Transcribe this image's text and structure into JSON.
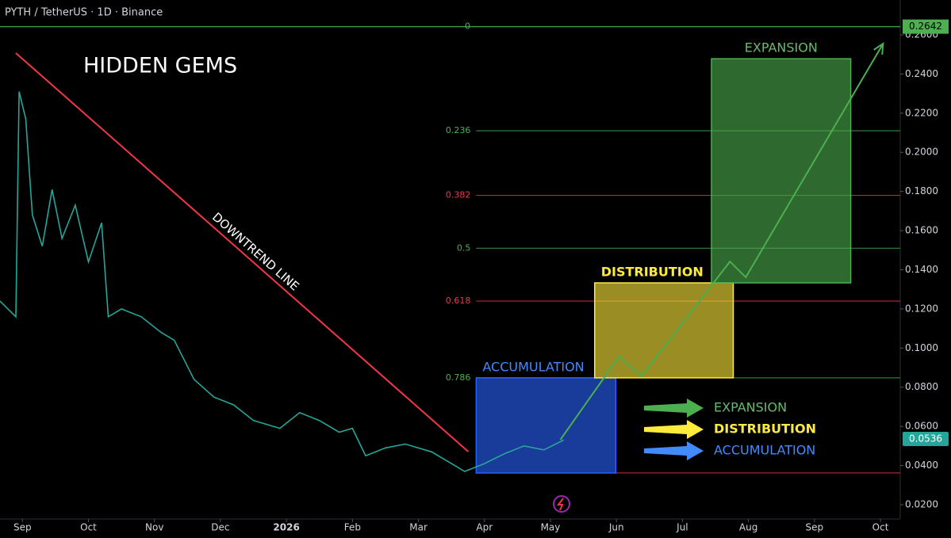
{
  "chart_data": {
    "type": "line",
    "title": "PYTH / TetherUS · 1D · Binance",
    "annotation": "HIDDEN GEMS",
    "xlim": [
      -0.34,
      13.3
    ],
    "ylim": [
      0.0127,
      0.2778
    ],
    "xticks": [
      {
        "value": 0,
        "label": "Sep"
      },
      {
        "value": 1,
        "label": "Oct"
      },
      {
        "value": 2,
        "label": "Nov"
      },
      {
        "value": 3,
        "label": "Dec"
      },
      {
        "value": 4,
        "label": "2026"
      },
      {
        "value": 5,
        "label": "Feb"
      },
      {
        "value": 6,
        "label": "Mar"
      },
      {
        "value": 7,
        "label": "Apr"
      },
      {
        "value": 8,
        "label": "May"
      },
      {
        "value": 9,
        "label": "Jun"
      },
      {
        "value": 10,
        "label": "Jul"
      },
      {
        "value": 11,
        "label": "Aug"
      },
      {
        "value": 12,
        "label": "Sep"
      },
      {
        "value": 13,
        "label": "Oct"
      }
    ],
    "yticks": [
      {
        "value": 0.02,
        "label": "0.0200"
      },
      {
        "value": 0.04,
        "label": "0.0400"
      },
      {
        "value": 0.06,
        "label": "0.0600"
      },
      {
        "value": 0.08,
        "label": "0.0800"
      },
      {
        "value": 0.1,
        "label": "0.1000"
      },
      {
        "value": 0.12,
        "label": "0.1200"
      },
      {
        "value": 0.14,
        "label": "0.1400"
      },
      {
        "value": 0.16,
        "label": "0.1600"
      },
      {
        "value": 0.18,
        "label": "0.1800"
      },
      {
        "value": 0.2,
        "label": "0.2000"
      },
      {
        "value": 0.22,
        "label": "0.2200"
      },
      {
        "value": 0.24,
        "label": "0.2400"
      },
      {
        "value": 0.26,
        "label": "0.2600"
      }
    ],
    "series": [
      {
        "name": "PYTH",
        "color": "#26a69a",
        "x": [
          -0.34,
          -0.1,
          -0.05,
          0.05,
          0.15,
          0.3,
          0.45,
          0.6,
          0.8,
          1.0,
          1.2,
          1.3,
          1.5,
          1.8,
          2.1,
          2.3,
          2.6,
          2.9,
          3.2,
          3.5,
          3.9,
          4.2,
          4.5,
          4.8,
          5.0,
          5.2,
          5.5,
          5.8,
          6.2,
          6.5,
          6.7,
          7.0,
          7.3,
          7.6,
          7.9,
          8.2
        ],
        "values": [
          0.124,
          0.116,
          0.231,
          0.217,
          0.168,
          0.152,
          0.181,
          0.156,
          0.173,
          0.144,
          0.164,
          0.116,
          0.12,
          0.116,
          0.108,
          0.104,
          0.084,
          0.075,
          0.071,
          0.063,
          0.059,
          0.067,
          0.063,
          0.057,
          0.059,
          0.045,
          0.049,
          0.051,
          0.047,
          0.041,
          0.037,
          0.041,
          0.046,
          0.05,
          0.048,
          0.053
        ]
      }
    ],
    "last_price": 0.0536,
    "projection": {
      "color": "#4caf50",
      "x": [
        8.15,
        9.04,
        9.38,
        10.72,
        10.96,
        13.04
      ],
      "values": [
        0.0532,
        0.0957,
        0.0856,
        0.1442,
        0.1362,
        0.2555
      ]
    },
    "trendline": {
      "label": "DOWNTREND LINE",
      "color": "#f23645",
      "x": [
        -0.1,
        6.755
      ],
      "values": [
        0.2507,
        0.0471
      ]
    },
    "zones": [
      {
        "label": "ACCUMULATION",
        "color": "#2962ff",
        "x": [
          6.875,
          8.99
        ],
        "y": [
          0.0362,
          0.0848
        ]
      },
      {
        "label": "DISTRIBUTION",
        "color": "#ffeb3b",
        "x": [
          8.67,
          10.77
        ],
        "y": [
          0.0848,
          0.1333
        ]
      },
      {
        "label": "EXPANSION",
        "color": "#4caf50",
        "x": [
          10.44,
          12.55
        ],
        "y": [
          0.1333,
          0.2478
        ]
      }
    ],
    "fib_levels": [
      {
        "label": "0",
        "price": 0.2642,
        "color": "#4caf50"
      },
      {
        "label": "0.236",
        "price": 0.211,
        "color": "#4caf50"
      },
      {
        "label": "0.382",
        "price": 0.178,
        "color": "#f23645"
      },
      {
        "label": "0.5",
        "price": 0.151,
        "color": "#4caf50"
      },
      {
        "label": "0.618",
        "price": 0.124,
        "color": "#f23645"
      },
      {
        "label": "0.786",
        "price": 0.0848,
        "color": "#4caf50"
      },
      {
        "label": null,
        "price": 0.0362,
        "color": "#f23645"
      }
    ]
  }
}
